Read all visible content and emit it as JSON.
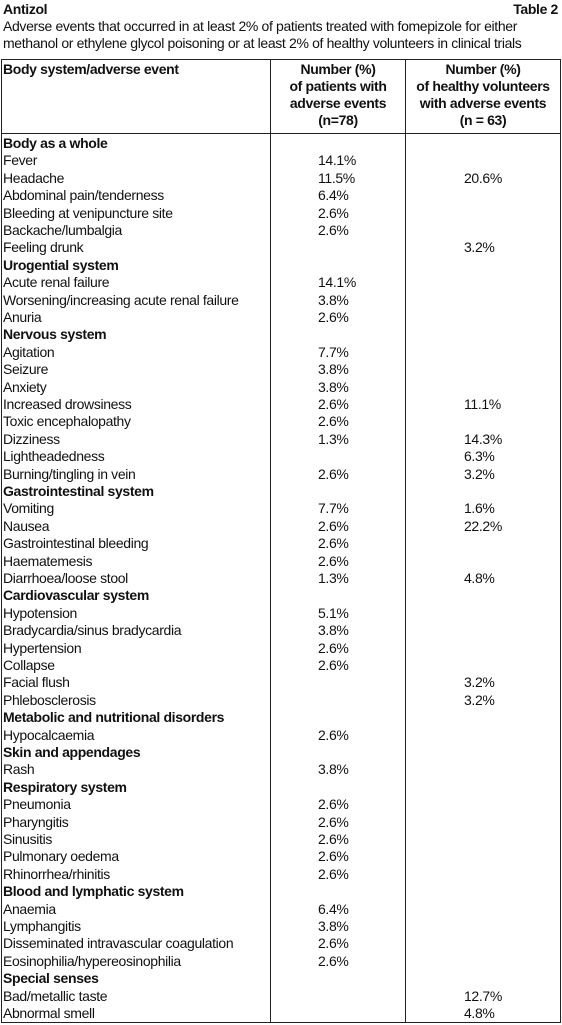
{
  "header": {
    "drug": "Antizol",
    "table_number": "Table 2",
    "caption": [
      "Adverse events that occurred in at least 2% of patients treated with fomepizole for either",
      "methanol or ethylene glycol poisoning or at least 2% of healthy volunteers in clinical trials"
    ]
  },
  "table": {
    "columns": [
      [
        "Body system/adverse event"
      ],
      [
        "Number (%)",
        "of patients with",
        "adverse events",
        "(n=78)"
      ],
      [
        "Number (%)",
        "of healthy volunteers",
        "with adverse events",
        "(n = 63)"
      ]
    ],
    "rows": [
      {
        "section": "Body as a whole"
      },
      {
        "event": "Fever",
        "patients": "14.1%"
      },
      {
        "event": "Headache",
        "patients": "11.5%",
        "volunteers": "20.6%"
      },
      {
        "event": "Abdominal pain/tenderness",
        "patients": "6.4%"
      },
      {
        "event": "Bleeding at venipuncture site",
        "patients": "2.6%"
      },
      {
        "event": "Backache/lumbalgia",
        "patients": "2.6%"
      },
      {
        "event": "Feeling drunk",
        "volunteers": "3.2%"
      },
      {
        "section": "Urogential system"
      },
      {
        "event": "Acute renal failure",
        "patients": "14.1%"
      },
      {
        "event": "Worsening/increasing acute renal failure",
        "patients": "3.8%"
      },
      {
        "event": "Anuria",
        "patients": "2.6%"
      },
      {
        "section": "Nervous system"
      },
      {
        "event": "Agitation",
        "patients": "7.7%"
      },
      {
        "event": "Seizure",
        "patients": "3.8%"
      },
      {
        "event": "Anxiety",
        "patients": "3.8%"
      },
      {
        "event": "Increased drowsiness",
        "patients": "2.6%",
        "volunteers": "11.1%"
      },
      {
        "event": "Toxic encephalopathy",
        "patients": "2.6%"
      },
      {
        "event": "Dizziness",
        "patients": "1.3%",
        "volunteers": "14.3%"
      },
      {
        "event": "Lightheadedness",
        "volunteers": "6.3%"
      },
      {
        "event": "Burning/tingling in vein",
        "patients": "2.6%",
        "volunteers": "3.2%"
      },
      {
        "section": "Gastrointestinal system"
      },
      {
        "event": "Vomiting",
        "patients": "7.7%",
        "volunteers": "1.6%"
      },
      {
        "event": "Nausea",
        "patients": "2.6%",
        "volunteers": "22.2%"
      },
      {
        "event": "Gastrointestinal bleeding",
        "patients": "2.6%"
      },
      {
        "event": "Haematemesis",
        "patients": "2.6%"
      },
      {
        "event": "Diarrhoea/loose stool",
        "patients": "1.3%",
        "volunteers": "4.8%"
      },
      {
        "section": "Cardiovascular system"
      },
      {
        "event": "Hypotension",
        "patients": "5.1%"
      },
      {
        "event": "Bradycardia/sinus bradycardia",
        "patients": "3.8%"
      },
      {
        "event": "Hypertension",
        "patients": "2.6%"
      },
      {
        "event": "Collapse",
        "patients": "2.6%"
      },
      {
        "event": "Facial flush",
        "volunteers": "3.2%"
      },
      {
        "event": "Phlebosclerosis",
        "volunteers": "3.2%"
      },
      {
        "section": "Metabolic and nutritional disorders"
      },
      {
        "event": "Hypocalcaemia",
        "patients": "2.6%"
      },
      {
        "section": "Skin and appendages"
      },
      {
        "event": "Rash",
        "patients": "3.8%"
      },
      {
        "section": "Respiratory system"
      },
      {
        "event": "Pneumonia",
        "patients": "2.6%"
      },
      {
        "event": "Pharyngitis",
        "patients": "2.6%"
      },
      {
        "event": "Sinusitis",
        "patients": "2.6%"
      },
      {
        "event": "Pulmonary oedema",
        "patients": "2.6%"
      },
      {
        "event": "Rhinorrhea/rhinitis",
        "patients": "2.6%"
      },
      {
        "section": "Blood and lymphatic system"
      },
      {
        "event": "Anaemia",
        "patients": "6.4%"
      },
      {
        "event": "Lymphangitis",
        "patients": "3.8%"
      },
      {
        "event": "Disseminated intravascular coagulation",
        "patients": "2.6%"
      },
      {
        "event": "Eosinophilia/hypereosinophilia",
        "patients": "2.6%"
      },
      {
        "section": "Special senses"
      },
      {
        "event": "Bad/metallic taste",
        "volunteers": "12.7%"
      },
      {
        "event": "Abnormal smell",
        "volunteers": "4.8%"
      }
    ]
  }
}
